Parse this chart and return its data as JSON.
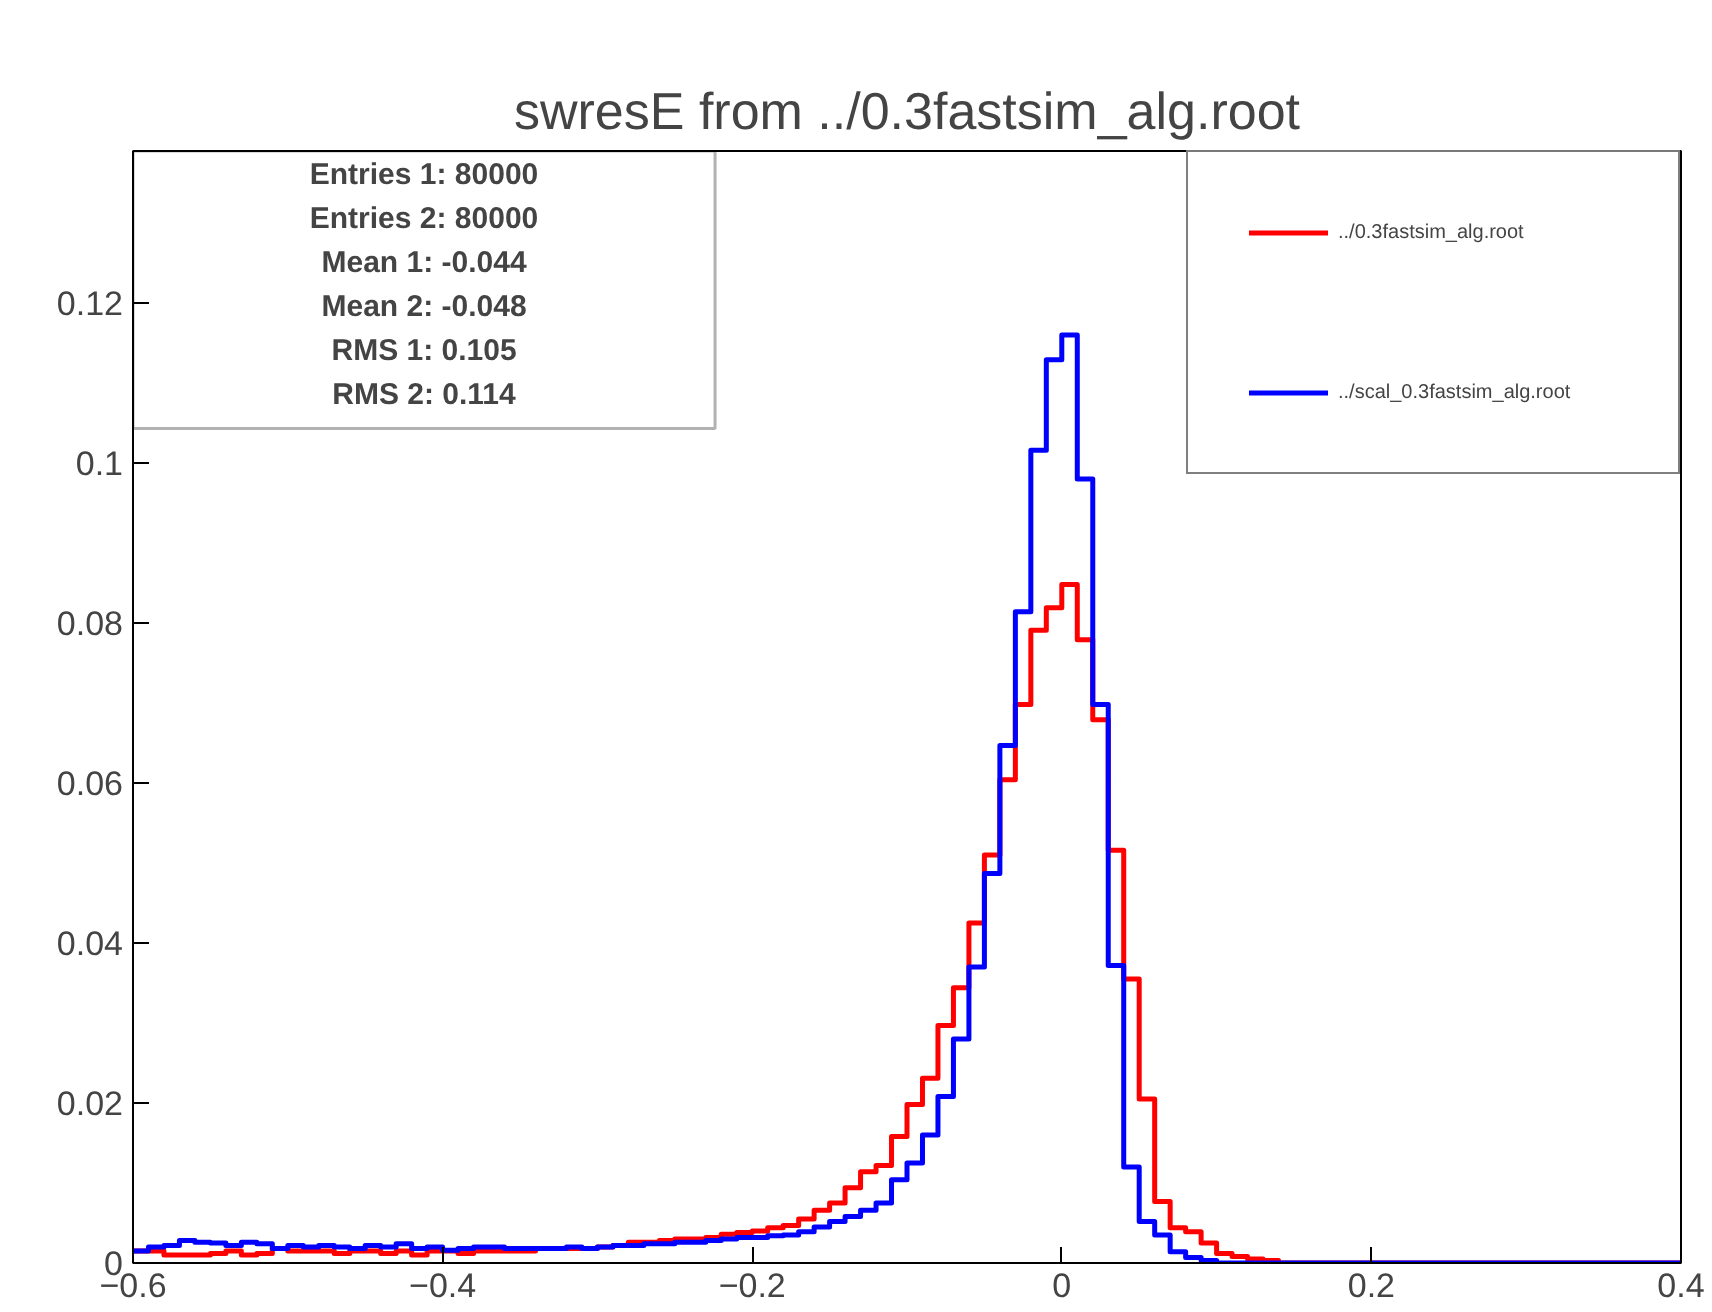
{
  "chart_data": {
    "type": "histogram",
    "title": "swresE from ../0.3fastsim_alg.root",
    "bins": [
      -0.6,
      -0.59,
      -0.58,
      -0.57,
      -0.56,
      -0.55,
      -0.54,
      -0.53,
      -0.52,
      -0.51,
      -0.5,
      -0.49,
      -0.48,
      -0.47,
      -0.46,
      -0.45,
      -0.44,
      -0.43,
      -0.42,
      -0.41,
      -0.4,
      -0.39,
      -0.38,
      -0.37,
      -0.36,
      -0.35,
      -0.34,
      -0.33,
      -0.32,
      -0.31,
      -0.3,
      -0.29,
      -0.28,
      -0.27,
      -0.26,
      -0.25,
      -0.24,
      -0.23,
      -0.22,
      -0.21,
      -0.2,
      -0.19,
      -0.18,
      -0.17,
      -0.16,
      -0.15,
      -0.14,
      -0.13,
      -0.12,
      -0.11,
      -0.1,
      -0.09,
      -0.08,
      -0.07,
      -0.06,
      -0.05,
      -0.04,
      -0.03,
      -0.02,
      -0.01,
      0,
      0.01,
      0.02,
      0.03,
      0.04,
      0.05,
      0.06,
      0.07,
      0.08,
      0.09,
      0.1,
      0.11,
      0.12,
      0.13,
      0.14,
      0.15,
      0.16,
      0.17,
      0.18,
      0.19,
      0.2,
      0.21,
      0.22,
      0.23,
      0.24,
      0.25,
      0.26,
      0.27,
      0.28,
      0.29,
      0.3,
      0.31,
      0.32,
      0.33,
      0.34,
      0.35,
      0.36,
      0.37,
      0.38,
      0.39,
      0.4
    ],
    "series": [
      {
        "name": "../0.3fastsim_alg.root",
        "color": "#ff0000",
        "values": [
          0.0015,
          0.0015,
          0.001,
          0.001,
          0.001,
          0.0012,
          0.0015,
          0.001,
          0.0012,
          0.0018,
          0.0015,
          0.0015,
          0.0015,
          0.0012,
          0.0015,
          0.0015,
          0.0012,
          0.0015,
          0.001,
          0.0015,
          0.0015,
          0.0012,
          0.0015,
          0.0015,
          0.0015,
          0.0015,
          0.0018,
          0.0018,
          0.0018,
          0.0018,
          0.002,
          0.0022,
          0.0026,
          0.0026,
          0.0028,
          0.003,
          0.003,
          0.0032,
          0.0036,
          0.0038,
          0.004,
          0.0044,
          0.0047,
          0.0055,
          0.0066,
          0.0075,
          0.0094,
          0.0114,
          0.0122,
          0.0158,
          0.0198,
          0.0231,
          0.0297,
          0.0344,
          0.0425,
          0.051,
          0.0604,
          0.0698,
          0.0791,
          0.0819,
          0.0848,
          0.0779,
          0.0679,
          0.0516,
          0.0355,
          0.0205,
          0.0077,
          0.0044,
          0.0039,
          0.0025,
          0.0012,
          0.0008,
          0.0005,
          0.0003,
          0,
          0,
          0,
          0,
          0,
          0,
          0,
          0,
          0,
          0,
          0,
          0,
          0,
          0,
          0,
          0,
          0,
          0,
          0,
          0,
          0,
          0,
          0,
          0,
          0,
          0
        ]
      },
      {
        "name": "../scal_0.3fastsim_alg.root",
        "color": "#0000ff",
        "values": [
          0.0015,
          0.002,
          0.0022,
          0.0028,
          0.0026,
          0.0025,
          0.0022,
          0.0026,
          0.0024,
          0.0018,
          0.0022,
          0.002,
          0.0022,
          0.002,
          0.0018,
          0.0022,
          0.002,
          0.0024,
          0.0018,
          0.002,
          0.0016,
          0.0018,
          0.002,
          0.002,
          0.0018,
          0.0018,
          0.0018,
          0.0018,
          0.002,
          0.0018,
          0.002,
          0.0022,
          0.0022,
          0.0024,
          0.0024,
          0.0026,
          0.0026,
          0.0028,
          0.003,
          0.0032,
          0.0032,
          0.0034,
          0.0035,
          0.0039,
          0.0045,
          0.0052,
          0.0058,
          0.0066,
          0.0075,
          0.0104,
          0.0125,
          0.016,
          0.0208,
          0.028,
          0.037,
          0.0487,
          0.0647,
          0.0814,
          0.1016,
          0.1129,
          0.116,
          0.098,
          0.0698,
          0.0372,
          0.012,
          0.0052,
          0.0035,
          0.0014,
          0.0007,
          0.0003,
          0,
          0,
          0,
          0,
          0,
          0,
          0,
          0,
          0,
          0,
          0,
          0,
          0,
          0,
          0,
          0,
          0,
          0,
          0,
          0,
          0,
          0,
          0,
          0,
          0,
          0,
          0,
          0,
          0,
          0
        ]
      }
    ],
    "xlim": [
      -0.6,
      0.4
    ],
    "xticks": [
      {
        "value": -0.6,
        "label": "−0.6"
      },
      {
        "value": -0.4,
        "label": "−0.4"
      },
      {
        "value": -0.2,
        "label": "−0.2"
      },
      0,
      0.2,
      0.4
    ],
    "ylim": [
      0,
      0.139
    ],
    "yticks": [
      0,
      0.02,
      0.04,
      0.06,
      0.08,
      0.1,
      0.12
    ],
    "annotations": [
      "Entries 1: 80000",
      "Entries 2: 80000",
      "Mean 1: -0.044",
      "Mean 2: -0.048",
      "RMS 1: 0.105",
      "RMS 2: 0.114"
    ],
    "legend": "top right",
    "grid": false
  }
}
